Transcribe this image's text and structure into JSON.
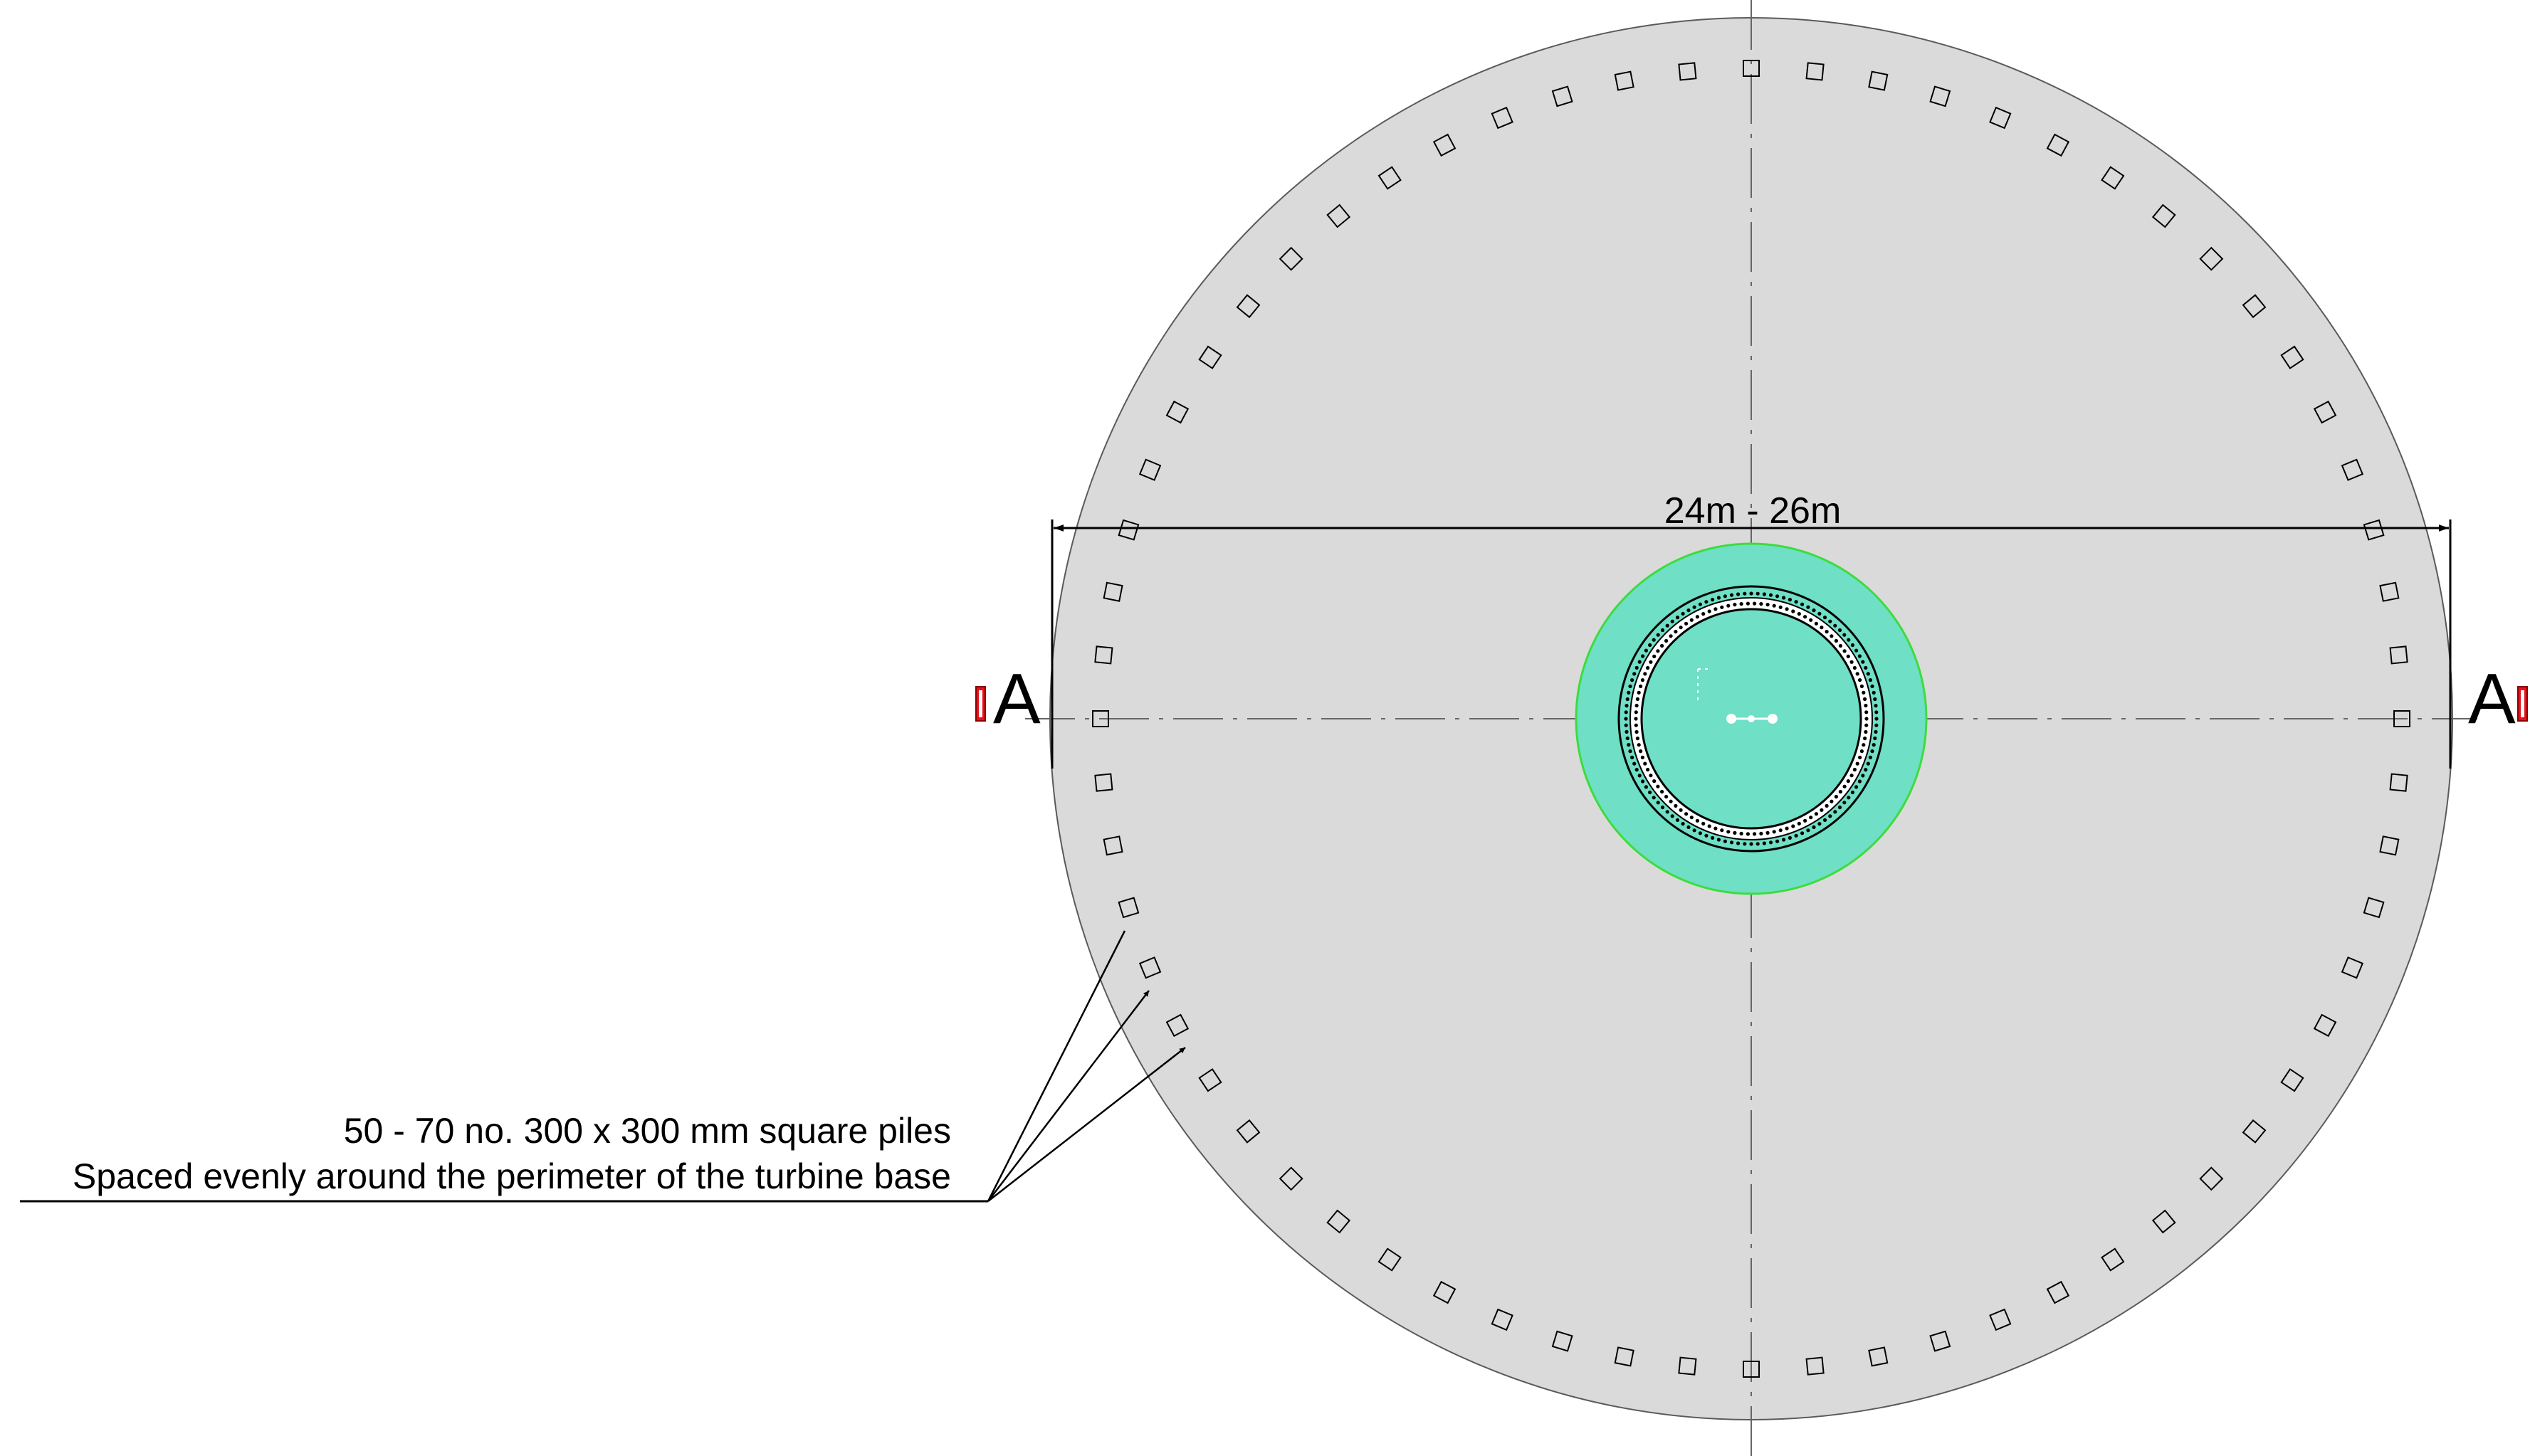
{
  "dimension": {
    "label": "24m - 26m"
  },
  "section_markers": {
    "left_label": "A",
    "right_label": "A",
    "marker_color": "#e8101a"
  },
  "annotation": {
    "line1": "50 - 70 no. 300 x 300 mm square piles",
    "line2": "Spaced evenly around the perimeter of the turbine base"
  },
  "piles": {
    "count": 64
  },
  "colors": {
    "base_fill": "#dadada",
    "base_stroke": "#5a5a5a",
    "pedestal_fill": "#6fdfc6",
    "pedestal_stroke": "#3ddc3d",
    "line": "#000000",
    "centerline": "#666666"
  }
}
